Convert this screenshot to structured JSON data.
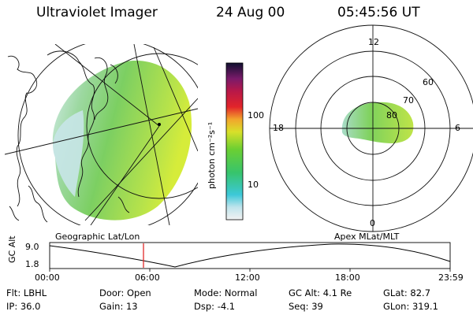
{
  "header": {
    "instrument": "Ultraviolet Imager",
    "date": "24 Aug 00",
    "time": "05:45:56 UT"
  },
  "colorbar": {
    "unit_label": "photon cm⁻²s⁻¹",
    "ticks": [
      "100",
      "10"
    ]
  },
  "polar": {
    "mlt_labels": {
      "top": "12",
      "left": "18",
      "right": "6",
      "bottom": "0"
    },
    "lat_labels": [
      "60",
      "70",
      "80"
    ]
  },
  "panel_labels": {
    "left": "Geographic Lat/Lon",
    "right": "Apex MLat/MLT"
  },
  "altitude_plot": {
    "ylabel": "GC Alt",
    "yticks": [
      "9.0",
      "1.8"
    ],
    "xticks": [
      "00:00",
      "06:00",
      "12:00",
      "18:00",
      "23:59"
    ]
  },
  "footer": {
    "col1": [
      {
        "label": "Flt:",
        "value": "LBHL"
      },
      {
        "label": "IP:",
        "value": "36.0"
      }
    ],
    "col2": [
      {
        "label": "Door:",
        "value": "Open"
      },
      {
        "label": "Gain:",
        "value": "13"
      }
    ],
    "col3": [
      {
        "label": "Mode:",
        "value": "Normal"
      },
      {
        "label": "Dsp:",
        "value": "-4.1"
      }
    ],
    "col4": [
      {
        "label": "GC Alt:",
        "value": "4.1 Re"
      },
      {
        "label": "Seq:",
        "value": "39"
      }
    ],
    "col5": [
      {
        "label": "GLat:",
        "value": "82.7"
      },
      {
        "label": "GLon:",
        "value": "319.1"
      }
    ]
  }
}
